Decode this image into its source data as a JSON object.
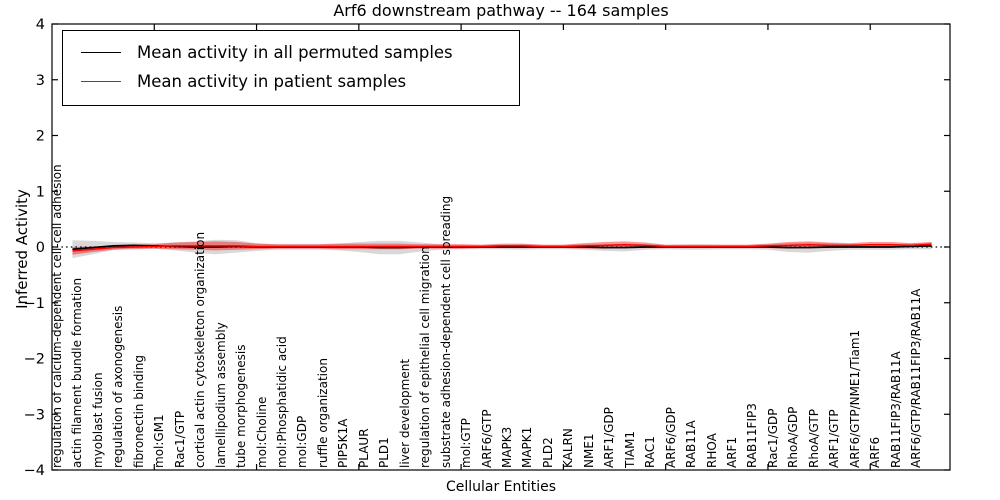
{
  "title": "Arf6 downstream pathway -- 164 samples",
  "legend": {
    "items": [
      {
        "label": "Mean activity in all permuted samples",
        "color": "#000000"
      },
      {
        "label": "Mean activity in patient samples",
        "color": "#ff0000"
      }
    ]
  },
  "chart_data": {
    "type": "line",
    "title": "Arf6 downstream pathway -- 164 samples",
    "xlabel": "Cellular Entities",
    "ylabel": "Inferred Activity",
    "ylim": [
      -4,
      4
    ],
    "yticks": [
      4,
      3,
      2,
      1,
      0,
      -1,
      -2,
      -3,
      -4
    ],
    "xlim": [
      0,
      43.9
    ],
    "xticks_unlabeled": [
      5,
      10,
      15,
      20,
      25,
      30,
      35,
      40
    ],
    "grid": false,
    "legend_position": "upper left",
    "zero_line": {
      "y": 0,
      "style": "dotted",
      "color": "#000000"
    },
    "categories": [
      "regulation of calcium-dependent cell-cell adhesion",
      "actin filament bundle formation",
      "myoblast fusion",
      "regulation of axonogenesis",
      "fibronectin binding",
      "mol:GM1",
      "Rac1/GTP",
      "cortical actin cytoskeleton organization",
      "lamellipodium assembly",
      "tube morphogenesis",
      "mol:Choline",
      "mol:Phosphatidic acid",
      "mol:GDP",
      "ruffle organization",
      "PIP5K1A",
      "PLAUR",
      "PLD1",
      "liver development",
      "regulation of epithelial cell migration",
      "substrate adhesion-dependent cell spreading",
      "mol:GTP",
      "ARF6/GTP",
      "MAPK3",
      "MAPK1",
      "PLD2",
      "KALRN",
      "NME1",
      "ARF1/GDP",
      "TIAM1",
      "RAC1",
      "ARF6/GDP",
      "RAB11A",
      "RHOA",
      "ARF1",
      "RAB11FIP3",
      "Rac1/GDP",
      "RhoA/GDP",
      "RhoA/GTP",
      "ARF1/GTP",
      "ARF6/GTP/NME1/Tiam1",
      "ARF6",
      "RAB11FIP3/RAB11A",
      "ARF6/GTP/RAB11FIP3/RAB11A"
    ],
    "series": [
      {
        "name": "Mean activity in all permuted samples",
        "color": "#000000",
        "linewidth": 1.7,
        "values": [
          -0.04,
          -0.01,
          0.02,
          0.03,
          0.02,
          0.01,
          0.0,
          0.0,
          0.01,
          0.0,
          0.0,
          0.0,
          0.0,
          0.0,
          0.0,
          -0.01,
          -0.01,
          0.0,
          0.0,
          0.0,
          0.0,
          0.0,
          0.0,
          0.0,
          0.0,
          0.0,
          -0.01,
          -0.01,
          0.0,
          0.0,
          0.0,
          0.0,
          0.0,
          0.0,
          0.0,
          -0.01,
          -0.01,
          0.0,
          0.0,
          0.0,
          0.0,
          0.01,
          0.02
        ]
      },
      {
        "name": "Mean activity in patient samples",
        "color": "#ff0000",
        "linewidth": 1.5,
        "values": [
          -0.07,
          -0.04,
          -0.01,
          0.0,
          0.01,
          0.02,
          0.02,
          0.02,
          0.02,
          0.01,
          0.01,
          0.01,
          0.01,
          0.01,
          0.01,
          0.01,
          0.01,
          0.01,
          0.01,
          0.01,
          0.01,
          0.02,
          0.02,
          0.01,
          0.01,
          0.02,
          0.03,
          0.04,
          0.03,
          0.01,
          0.01,
          0.01,
          0.01,
          0.01,
          0.02,
          0.03,
          0.04,
          0.03,
          0.03,
          0.04,
          0.04,
          0.03,
          0.05
        ]
      }
    ],
    "bands": [
      {
        "name": "permuted samples std band",
        "color": "#8a8a8a",
        "opacity": 0.33,
        "center_series": 0,
        "halfwidths": [
          0.16,
          0.12,
          0.07,
          0.05,
          0.05,
          0.07,
          0.1,
          0.13,
          0.11,
          0.07,
          0.05,
          0.05,
          0.05,
          0.06,
          0.09,
          0.12,
          0.12,
          0.08,
          0.05,
          0.04,
          0.04,
          0.04,
          0.05,
          0.04,
          0.04,
          0.05,
          0.06,
          0.07,
          0.05,
          0.04,
          0.05,
          0.05,
          0.04,
          0.04,
          0.05,
          0.08,
          0.09,
          0.07,
          0.05,
          0.05,
          0.05,
          0.05,
          0.06
        ]
      },
      {
        "name": "patient samples std band",
        "color": "#ff0000",
        "opacity": 0.42,
        "center_series": 1,
        "halfwidths": [
          0.07,
          0.05,
          0.04,
          0.04,
          0.04,
          0.06,
          0.07,
          0.08,
          0.07,
          0.05,
          0.04,
          0.04,
          0.04,
          0.05,
          0.05,
          0.05,
          0.05,
          0.04,
          0.04,
          0.04,
          0.03,
          0.04,
          0.04,
          0.03,
          0.03,
          0.05,
          0.06,
          0.06,
          0.05,
          0.03,
          0.03,
          0.03,
          0.03,
          0.03,
          0.04,
          0.06,
          0.06,
          0.05,
          0.04,
          0.05,
          0.05,
          0.04,
          0.04
        ]
      }
    ]
  }
}
